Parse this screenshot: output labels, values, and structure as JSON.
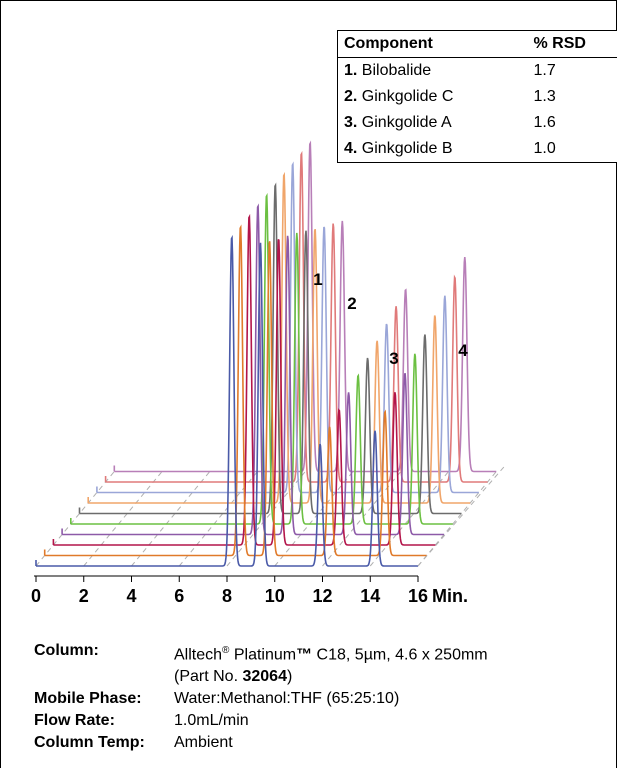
{
  "chart_data": {
    "type": "line",
    "subtype": "stacked-waterfall-chromatogram",
    "x_ticks": [
      "0",
      "2",
      "4",
      "6",
      "8",
      "10",
      "12",
      "14",
      "16"
    ],
    "x_unit": "Min.",
    "xlim": [
      0,
      16
    ],
    "peak_labels": [
      "1",
      "2",
      "3",
      "4"
    ],
    "peak_times": [
      8.2,
      9.4,
      11.9,
      14.2
    ],
    "peak_heights_front": [
      1.0,
      0.98,
      0.37,
      0.41
    ],
    "series": [
      {
        "color": "#4a5aa8"
      },
      {
        "color": "#e07a2a"
      },
      {
        "color": "#b3154a"
      },
      {
        "color": "#8d5aa8"
      },
      {
        "color": "#6cc042"
      },
      {
        "color": "#6c6c6c"
      },
      {
        "color": "#f0a56a"
      },
      {
        "color": "#9aa6d8"
      },
      {
        "color": "#e07a7a"
      },
      {
        "color": "#b87fb8"
      }
    ]
  },
  "table": {
    "headers": [
      "Component",
      "% RSD"
    ],
    "rows": [
      {
        "num": "1.",
        "name": "Bilobalide",
        "rsd": "1.7"
      },
      {
        "num": "2.",
        "name": "Ginkgolide C",
        "rsd": "1.3"
      },
      {
        "num": "3.",
        "name": "Ginkgolide A",
        "rsd": "1.6"
      },
      {
        "num": "4.",
        "name": "Ginkgolide B",
        "rsd": "1.0"
      }
    ]
  },
  "conditions": {
    "column_label": "Column:",
    "column_value_prefix": "Alltech",
    "column_reg": "®",
    "column_value_mid": " Platinum",
    "column_tm": "™",
    "column_value_suffix": " C18, 5µm, 4.6 x 250mm",
    "part_prefix": "(Part No. ",
    "part_no": "32064",
    "part_suffix": ")",
    "mobile_label": "Mobile Phase:",
    "mobile_value": "Water:Methanol:THF (65:25:10)",
    "flow_label": "Flow Rate:",
    "flow_value": "1.0mL/min",
    "temp_label": "Column Temp:",
    "temp_value": "Ambient"
  }
}
